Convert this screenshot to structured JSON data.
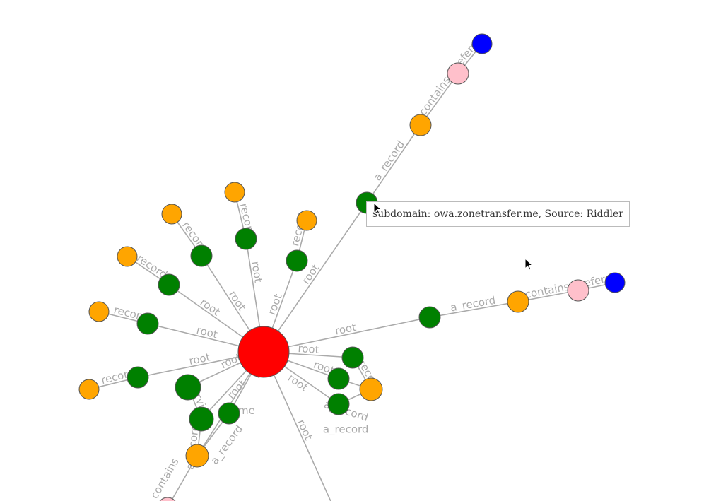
{
  "graph": {
    "colors": {
      "root": "#ff0000",
      "subdomain": "#008000",
      "ip": "#ffa500",
      "network": "#ffc0cb",
      "asn": "#0000ff",
      "edge": "#aaaaaa"
    },
    "nodes": [
      {
        "id": "R",
        "type": "root"
      },
      {
        "id": "g1",
        "type": "subdomain"
      },
      {
        "id": "o1",
        "type": "ip"
      },
      {
        "id": "p1",
        "type": "network"
      },
      {
        "id": "b1",
        "type": "asn"
      },
      {
        "id": "g2",
        "type": "subdomain"
      },
      {
        "id": "o2",
        "type": "ip"
      },
      {
        "id": "p2",
        "type": "network"
      },
      {
        "id": "b2",
        "type": "asn"
      },
      {
        "id": "g3",
        "type": "subdomain"
      },
      {
        "id": "o3",
        "type": "ip"
      },
      {
        "id": "g4",
        "type": "subdomain"
      },
      {
        "id": "o4",
        "type": "ip"
      },
      {
        "id": "g5",
        "type": "subdomain"
      },
      {
        "id": "o5",
        "type": "ip"
      },
      {
        "id": "g6",
        "type": "subdomain"
      },
      {
        "id": "o6",
        "type": "ip"
      },
      {
        "id": "g7",
        "type": "subdomain"
      },
      {
        "id": "o7",
        "type": "ip"
      },
      {
        "id": "g8",
        "type": "subdomain"
      },
      {
        "id": "o8",
        "type": "ip"
      },
      {
        "id": "g9",
        "type": "subdomain"
      },
      {
        "id": "g10",
        "type": "subdomain"
      },
      {
        "id": "g11",
        "type": "subdomain"
      },
      {
        "id": "o9",
        "type": "ip"
      },
      {
        "id": "p3",
        "type": "network"
      },
      {
        "id": "g12",
        "type": "subdomain"
      },
      {
        "id": "g13",
        "type": "subdomain"
      },
      {
        "id": "g14",
        "type": "subdomain"
      },
      {
        "id": "o10",
        "type": "ip"
      },
      {
        "id": "d1",
        "type": "subdomain"
      }
    ],
    "edges": [
      {
        "s": "R",
        "t": "g1",
        "label": "root"
      },
      {
        "s": "g1",
        "t": "o1",
        "label": "a_record"
      },
      {
        "s": "o1",
        "t": "p1",
        "label": "contains"
      },
      {
        "s": "p1",
        "t": "b1",
        "label": "refers"
      },
      {
        "s": "R",
        "t": "g2",
        "label": "root"
      },
      {
        "s": "g2",
        "t": "o2",
        "label": "a_record"
      },
      {
        "s": "o2",
        "t": "p2",
        "label": "contains"
      },
      {
        "s": "p2",
        "t": "b2",
        "label": "refers"
      },
      {
        "s": "R",
        "t": "g3",
        "label": "root"
      },
      {
        "s": "g3",
        "t": "o3",
        "label": "a_record"
      },
      {
        "s": "R",
        "t": "g4",
        "label": "root"
      },
      {
        "s": "g4",
        "t": "o4",
        "label": "a_record"
      },
      {
        "s": "R",
        "t": "g5",
        "label": "root"
      },
      {
        "s": "g5",
        "t": "o5",
        "label": "a_record"
      },
      {
        "s": "R",
        "t": "g6",
        "label": "root"
      },
      {
        "s": "g6",
        "t": "o6",
        "label": "a_record"
      },
      {
        "s": "R",
        "t": "g7",
        "label": "root"
      },
      {
        "s": "g7",
        "t": "o7",
        "label": "a_record"
      },
      {
        "s": "R",
        "t": "g8",
        "label": "root"
      },
      {
        "s": "g8",
        "t": "o8",
        "label": "a_record"
      },
      {
        "s": "R",
        "t": "g9",
        "label": "root"
      },
      {
        "s": "g9",
        "t": "g10",
        "label": "service"
      },
      {
        "s": "R",
        "t": "g10",
        "label": "root"
      },
      {
        "s": "g10",
        "t": "o9",
        "label": "a_record"
      },
      {
        "s": "R",
        "t": "g11",
        "label": "root"
      },
      {
        "s": "g11",
        "t": "o9",
        "label": "a_record"
      },
      {
        "s": "R",
        "t": "o9",
        "label": "cname"
      },
      {
        "s": "o9",
        "t": "p3",
        "label": "contains"
      },
      {
        "s": "R",
        "t": "g12",
        "label": "root"
      },
      {
        "s": "g12",
        "t": "o10",
        "label": "a_record"
      },
      {
        "s": "R",
        "t": "g13",
        "label": "root"
      },
      {
        "s": "g13",
        "t": "o10",
        "label": "a_record"
      },
      {
        "s": "R",
        "t": "g14",
        "label": "root"
      },
      {
        "s": "g14",
        "t": "o10",
        "label": "a_record"
      },
      {
        "s": "R",
        "t": "d1",
        "label": "root"
      }
    ]
  },
  "tooltip": {
    "text": "subdomain: owa.zonetransfer.me, Source: Riddler"
  }
}
